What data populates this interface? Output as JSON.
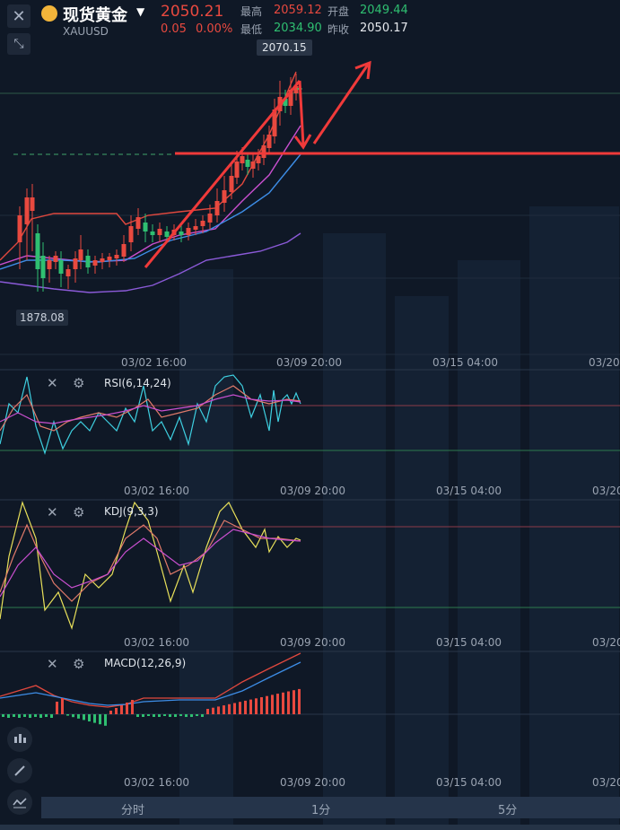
{
  "header": {
    "symbol_name": "现货黄金",
    "symbol_code": "XAUUSD",
    "last_price": "2050.21",
    "change": "0.05",
    "change_pct": "0.00%",
    "high_label": "最高",
    "high_value": "2059.12",
    "low_label": "最低",
    "low_value": "2034.90",
    "open_label": "开盘",
    "open_value": "2049.44",
    "prev_close_label": "昨收",
    "prev_close_value": "2050.17"
  },
  "main_chart": {
    "max_label": "2070.15",
    "min_label": "1878.08",
    "x_ticks": [
      "03/02 16:00",
      "03/09 20:00",
      "03/15 04:00",
      "03/20"
    ]
  },
  "indicators": [
    {
      "label": "RSI(6,14,24)",
      "x_ticks": [
        "03/02 16:00",
        "03/09 20:00",
        "03/15 04:00",
        "03/20"
      ]
    },
    {
      "label": "KDJ(9,3,3)",
      "x_ticks": [
        "03/02 16:00",
        "03/09 20:00",
        "03/15 04:00",
        "03/20"
      ]
    },
    {
      "label": "MACD(12,26,9)",
      "x_ticks": [
        "03/02 16:00",
        "03/09 20:00",
        "03/15 04:00",
        "03/20"
      ]
    }
  ],
  "tabs": [
    "分时",
    "1分",
    "5分"
  ],
  "colors": {
    "up": "#e8493f",
    "down": "#2fbf71",
    "annotation": "#f03a3a",
    "bg": "#0f1826"
  }
}
